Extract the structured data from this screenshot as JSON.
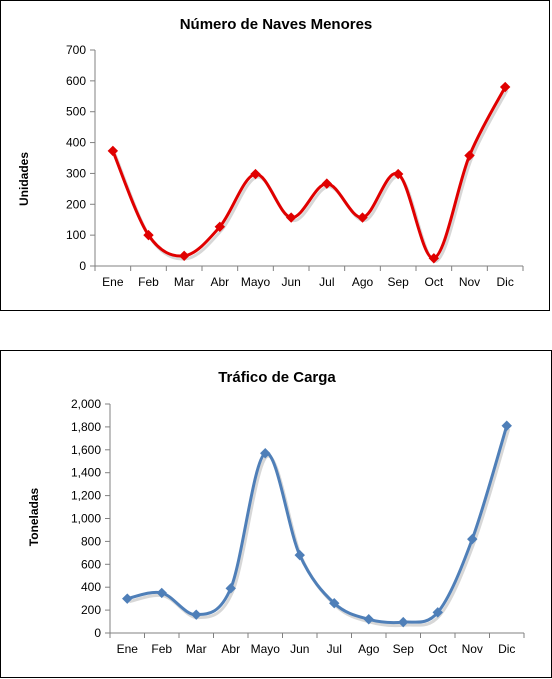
{
  "chart_data": [
    {
      "type": "line",
      "title": "Número de Naves Menores",
      "xlabel": "",
      "ylabel": "Unidades",
      "categories": [
        "Ene",
        "Feb",
        "Mar",
        "Abr",
        "Mayo",
        "Jun",
        "Jul",
        "Ago",
        "Sep",
        "Oct",
        "Nov",
        "Dic"
      ],
      "series": [
        {
          "values": [
            373,
            100,
            33,
            127,
            298,
            157,
            267,
            157,
            298,
            25,
            358,
            580
          ]
        }
      ],
      "ylim": [
        0,
        700
      ],
      "yticks": [
        0,
        100,
        200,
        300,
        400,
        500,
        600,
        700
      ],
      "ytick_labels": [
        "0",
        "100",
        "200",
        "300",
        "400",
        "500",
        "600",
        "700"
      ],
      "grid": false,
      "smooth": true,
      "marker": "diamond",
      "color": "#e00000"
    },
    {
      "type": "line",
      "title": "Tráfico de Carga",
      "xlabel": "",
      "ylabel": "Toneladas",
      "categories": [
        "Ene",
        "Feb",
        "Mar",
        "Abr",
        "Mayo",
        "Jun",
        "Jul",
        "Ago",
        "Sep",
        "Oct",
        "Nov",
        "Dic"
      ],
      "series": [
        {
          "values": [
            300,
            350,
            160,
            390,
            1570,
            680,
            260,
            120,
            95,
            180,
            820,
            1810
          ]
        }
      ],
      "ylim": [
        0,
        2000
      ],
      "yticks": [
        0,
        200,
        400,
        600,
        800,
        1000,
        1200,
        1400,
        1600,
        1800,
        2000
      ],
      "ytick_labels": [
        "0",
        "200",
        "400",
        "600",
        "800",
        "1,000",
        "1,200",
        "1,400",
        "1,600",
        "1,800",
        "2,000"
      ],
      "grid": false,
      "smooth": true,
      "marker": "diamond",
      "color": "#4f7fb8"
    }
  ]
}
